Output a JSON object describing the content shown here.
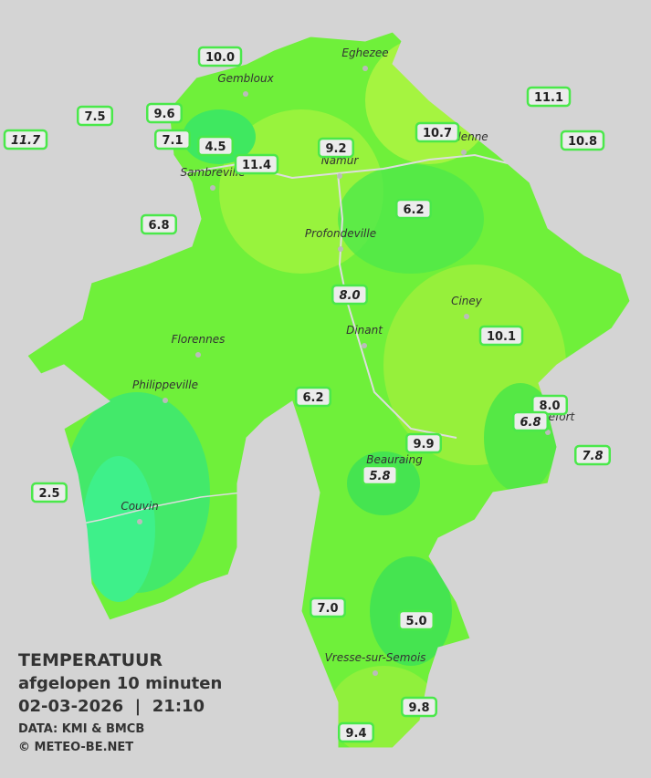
{
  "map": {
    "cities": [
      "Eghezee",
      "Gembloux",
      "Andenne",
      "Namur",
      "Sambreville",
      "Profondeville",
      "Ciney",
      "Florennes",
      "Dinant",
      "Philippeville",
      "Rochefort",
      "Beauraing",
      "Couvin",
      "Vresse-sur-Semois"
    ],
    "stations": [
      {
        "label": "10.0",
        "italic": false
      },
      {
        "label": "7.5",
        "italic": false
      },
      {
        "label": "9.6",
        "italic": false
      },
      {
        "label": "11.7",
        "italic": true
      },
      {
        "label": "7.1",
        "italic": false
      },
      {
        "label": "4.5",
        "italic": false
      },
      {
        "label": "11.4",
        "italic": false
      },
      {
        "label": "9.2",
        "italic": false
      },
      {
        "label": "10.7",
        "italic": false
      },
      {
        "label": "11.1",
        "italic": false
      },
      {
        "label": "10.8",
        "italic": false
      },
      {
        "label": "6.8",
        "italic": false
      },
      {
        "label": "6.2",
        "italic": false
      },
      {
        "label": "8.0",
        "italic": true
      },
      {
        "label": "10.1",
        "italic": false
      },
      {
        "label": "6.2",
        "italic": false
      },
      {
        "label": "8.0",
        "italic": false
      },
      {
        "label": "6.8",
        "italic": true
      },
      {
        "label": "7.8",
        "italic": true
      },
      {
        "label": "9.9",
        "italic": false
      },
      {
        "label": "5.8",
        "italic": true
      },
      {
        "label": "2.5",
        "italic": false
      },
      {
        "label": "7.0",
        "italic": false
      },
      {
        "label": "5.0",
        "italic": false
      },
      {
        "label": "9.8",
        "italic": false
      },
      {
        "label": "9.4",
        "italic": false
      }
    ]
  },
  "legend": {
    "title": "TEMPERATUUR",
    "subtitle": "afgelopen 10 minuten",
    "datetime": "02-03-2026  |  21:10",
    "source": "DATA: KMI & BMCB",
    "copyright": "© METEO-BE.NET"
  }
}
